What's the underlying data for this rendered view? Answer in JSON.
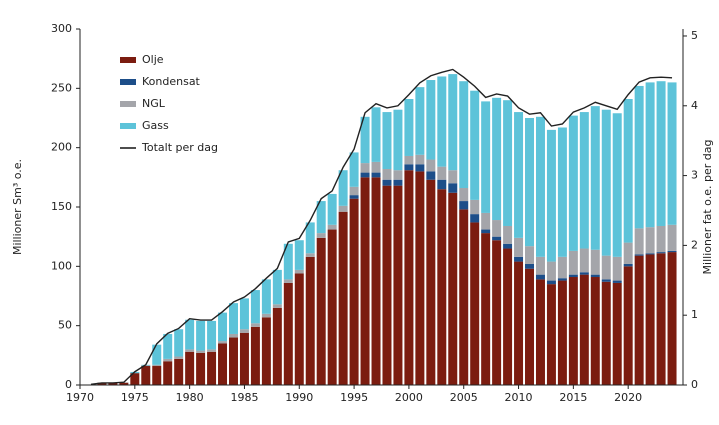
{
  "chart_data": {
    "type": "bar",
    "stacked": true,
    "ylabel": "Millioner Sm³ o.e.",
    "y2label": "Millioner fat o.e. per dag",
    "x": [
      1971,
      1972,
      1973,
      1974,
      1975,
      1976,
      1977,
      1978,
      1979,
      1980,
      1981,
      1982,
      1983,
      1984,
      1985,
      1986,
      1987,
      1988,
      1989,
      1990,
      1991,
      1992,
      1993,
      1994,
      1995,
      1996,
      1997,
      1998,
      1999,
      2000,
      2001,
      2002,
      2003,
      2004,
      2005,
      2006,
      2007,
      2008,
      2009,
      2010,
      2011,
      2012,
      2013,
      2014,
      2015,
      2016,
      2017,
      2018,
      2019,
      2020,
      2021,
      2022,
      2023,
      2024
    ],
    "xlim": [
      1970,
      2025
    ],
    "xticks": [
      1970,
      1975,
      1980,
      1985,
      1990,
      1995,
      2000,
      2005,
      2010,
      2015,
      2020
    ],
    "ylim": [
      0,
      300
    ],
    "yticks": [
      0,
      50,
      100,
      150,
      200,
      250,
      300
    ],
    "y2lim": [
      0,
      5.1
    ],
    "y2ticks": [
      0,
      1,
      2,
      3,
      4,
      5
    ],
    "legend": "top-left",
    "series": [
      {
        "name": "Olje",
        "color": "#7b1c10",
        "values": [
          0.3,
          1.9,
          1.9,
          2.0,
          10,
          16,
          16,
          20,
          22,
          28,
          27,
          28,
          35,
          40,
          44,
          49,
          57,
          65,
          86,
          94,
          108,
          124,
          131,
          146,
          157,
          175,
          175,
          168,
          168,
          181,
          180,
          173,
          165,
          162,
          148,
          137,
          128,
          122,
          115,
          104,
          98,
          89,
          85,
          88,
          91,
          93,
          91,
          87,
          86,
          100,
          109,
          110,
          111,
          112
        ]
      },
      {
        "name": "Kondensat",
        "color": "#1d4e89",
        "values": [
          0,
          0,
          0,
          0,
          0,
          0,
          0,
          0,
          0,
          0,
          0,
          0,
          0,
          0,
          0,
          0,
          0,
          0,
          0,
          0,
          0,
          0,
          0,
          0,
          3,
          4,
          4,
          5,
          5,
          5,
          6,
          7,
          8,
          8,
          7,
          7,
          3,
          3,
          4,
          4,
          4,
          4,
          3,
          2,
          2,
          2,
          2,
          2,
          2,
          2,
          1,
          1,
          1,
          1
        ]
      },
      {
        "name": "NGL",
        "color": "#a4a5aa",
        "values": [
          0,
          0,
          0,
          0,
          0,
          0.5,
          1,
          2,
          2,
          2,
          2,
          2,
          2,
          3,
          3,
          3,
          3,
          3,
          3,
          3,
          3,
          4,
          4,
          5,
          7,
          8,
          9,
          9,
          8,
          7,
          8,
          10,
          11,
          11,
          11,
          12,
          14,
          14,
          15,
          16,
          15,
          15,
          16,
          18,
          20,
          20,
          21,
          20,
          20,
          18,
          22,
          22,
          22,
          22
        ]
      },
      {
        "name": "Gass",
        "color": "#5dc3d9",
        "values": [
          0.1,
          0,
          0,
          0.1,
          1,
          0.5,
          17,
          21,
          23,
          25,
          25,
          24,
          24,
          26,
          26,
          28,
          29,
          29,
          30,
          25,
          26,
          27,
          26,
          30,
          29,
          39,
          46,
          48,
          51,
          48,
          57,
          67,
          76,
          81,
          90,
          92,
          94,
          103,
          106,
          106,
          108,
          118,
          111,
          109,
          114,
          115,
          121,
          123,
          121,
          121,
          120,
          122,
          122,
          120
        ]
      },
      {
        "name": "Totalt per dag",
        "color": "#222222",
        "axis": "y2",
        "type": "line",
        "values": [
          0.01,
          0.03,
          0.03,
          0.04,
          0.19,
          0.29,
          0.59,
          0.74,
          0.81,
          0.95,
          0.93,
          0.93,
          1.05,
          1.19,
          1.26,
          1.38,
          1.53,
          1.67,
          2.05,
          2.1,
          2.36,
          2.67,
          2.78,
          3.12,
          3.38,
          3.9,
          4.03,
          3.97,
          4.0,
          4.16,
          4.33,
          4.43,
          4.48,
          4.52,
          4.41,
          4.28,
          4.12,
          4.17,
          4.14,
          3.97,
          3.88,
          3.9,
          3.71,
          3.74,
          3.91,
          3.97,
          4.05,
          4.0,
          3.95,
          4.16,
          4.34,
          4.4,
          4.41,
          4.4
        ]
      }
    ]
  }
}
